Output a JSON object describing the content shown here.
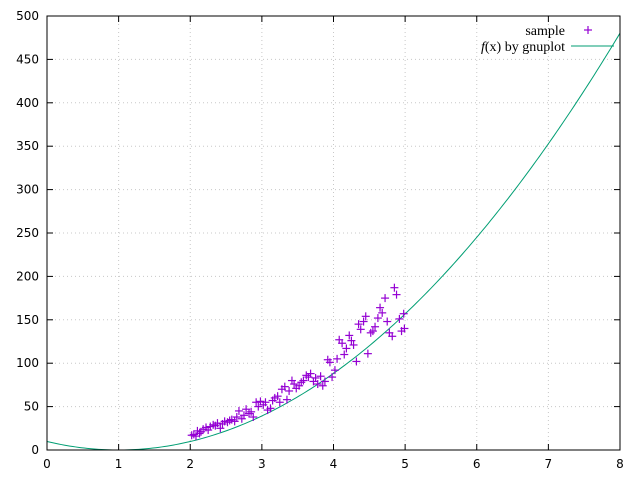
{
  "chart_data": {
    "type": "scatter",
    "xlim": [
      0,
      8
    ],
    "ylim": [
      0,
      500
    ],
    "x_ticks": [
      0,
      1,
      2,
      3,
      4,
      5,
      6,
      7,
      8
    ],
    "y_ticks": [
      0,
      50,
      100,
      150,
      200,
      250,
      300,
      350,
      400,
      450,
      500
    ],
    "grid": true,
    "legend_position": "top-right",
    "series": [
      {
        "name": "sample",
        "kind": "scatter",
        "marker": "+",
        "color": "#9400d3",
        "points": [
          [
            2.02,
            17
          ],
          [
            2.05,
            18
          ],
          [
            2.08,
            16
          ],
          [
            2.1,
            22
          ],
          [
            2.13,
            19
          ],
          [
            2.15,
            21
          ],
          [
            2.18,
            24
          ],
          [
            2.22,
            26
          ],
          [
            2.25,
            23
          ],
          [
            2.28,
            27
          ],
          [
            2.32,
            29
          ],
          [
            2.35,
            28
          ],
          [
            2.38,
            31
          ],
          [
            2.42,
            25
          ],
          [
            2.45,
            30
          ],
          [
            2.48,
            33
          ],
          [
            2.52,
            32
          ],
          [
            2.55,
            34
          ],
          [
            2.58,
            35
          ],
          [
            2.62,
            33
          ],
          [
            2.65,
            38
          ],
          [
            2.68,
            45
          ],
          [
            2.72,
            36
          ],
          [
            2.75,
            40
          ],
          [
            2.78,
            47
          ],
          [
            2.82,
            42
          ],
          [
            2.85,
            44
          ],
          [
            2.88,
            38
          ],
          [
            2.92,
            55
          ],
          [
            2.95,
            50
          ],
          [
            2.98,
            56
          ],
          [
            3.02,
            52
          ],
          [
            3.05,
            55
          ],
          [
            3.08,
            46
          ],
          [
            3.12,
            48
          ],
          [
            3.15,
            57
          ],
          [
            3.18,
            60
          ],
          [
            3.22,
            62
          ],
          [
            3.25,
            55
          ],
          [
            3.28,
            70
          ],
          [
            3.32,
            73
          ],
          [
            3.35,
            58
          ],
          [
            3.38,
            68
          ],
          [
            3.42,
            80
          ],
          [
            3.45,
            76
          ],
          [
            3.48,
            71
          ],
          [
            3.52,
            74
          ],
          [
            3.55,
            78
          ],
          [
            3.58,
            80
          ],
          [
            3.62,
            86
          ],
          [
            3.65,
            84
          ],
          [
            3.68,
            88
          ],
          [
            3.72,
            79
          ],
          [
            3.75,
            83
          ],
          [
            3.78,
            76
          ],
          [
            3.82,
            85
          ],
          [
            3.85,
            74
          ],
          [
            3.88,
            79
          ],
          [
            3.92,
            104
          ],
          [
            3.95,
            101
          ],
          [
            3.98,
            84
          ],
          [
            4.02,
            92
          ],
          [
            4.05,
            105
          ],
          [
            4.08,
            127
          ],
          [
            4.12,
            123
          ],
          [
            4.15,
            110
          ],
          [
            4.18,
            117
          ],
          [
            4.22,
            132
          ],
          [
            4.25,
            126
          ],
          [
            4.28,
            121
          ],
          [
            4.32,
            102
          ],
          [
            4.35,
            145
          ],
          [
            4.38,
            139
          ],
          [
            4.42,
            148
          ],
          [
            4.45,
            154
          ],
          [
            4.48,
            111
          ],
          [
            4.52,
            135
          ],
          [
            4.55,
            137
          ],
          [
            4.58,
            142
          ],
          [
            4.62,
            152
          ],
          [
            4.65,
            164
          ],
          [
            4.68,
            158
          ],
          [
            4.72,
            175
          ],
          [
            4.75,
            148
          ],
          [
            4.78,
            135
          ],
          [
            4.82,
            131
          ],
          [
            4.85,
            187
          ],
          [
            4.88,
            179
          ],
          [
            4.92,
            151
          ],
          [
            4.95,
            137
          ],
          [
            4.98,
            157
          ],
          [
            4.99,
            140
          ]
        ]
      },
      {
        "name": "f(x) by gnuplot",
        "kind": "line",
        "color": "#009e73",
        "function": "quadratic",
        "coefficients": {
          "a": 9.8,
          "b": -19.6,
          "c": 9.8
        }
      }
    ]
  },
  "legend": {
    "sample_label": "sample",
    "fit_label_prefix": "f",
    "fit_label_arg": "(x)",
    "fit_label_suffix": " by gnuplot"
  }
}
